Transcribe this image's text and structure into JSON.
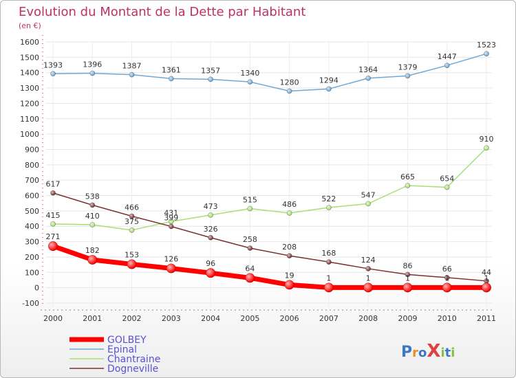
{
  "chart_data": {
    "type": "line",
    "title": "Evolution du Montant de la Dette par Habitant",
    "subtitle": "(en €)",
    "xlabel": "",
    "ylabel": "",
    "categories": [
      "2000",
      "2001",
      "2002",
      "2003",
      "2004",
      "2005",
      "2006",
      "2007",
      "2008",
      "2009",
      "2010",
      "2011"
    ],
    "ylim": [
      -100,
      1600
    ],
    "yticks": [
      -100,
      0,
      100,
      200,
      300,
      400,
      500,
      600,
      700,
      800,
      900,
      1000,
      1100,
      1200,
      1300,
      1400,
      1500,
      1600
    ],
    "grid": true,
    "legend_position": "bottom-left",
    "series": [
      {
        "name": "GOLBEY",
        "color": "#ff0000",
        "values": [
          271,
          182,
          153,
          126,
          96,
          64,
          19,
          1,
          1,
          1,
          1,
          1
        ]
      },
      {
        "name": "Epinal",
        "color": "#6fa8d6",
        "values": [
          1393,
          1396,
          1387,
          1361,
          1357,
          1340,
          1280,
          1294,
          1364,
          1379,
          1447,
          1523
        ]
      },
      {
        "name": "Chantraine",
        "color": "#a8e070",
        "values": [
          415,
          410,
          375,
          431,
          473,
          515,
          486,
          522,
          547,
          665,
          654,
          910
        ]
      },
      {
        "name": "Dogneville",
        "color": "#7a3030",
        "values": [
          617,
          538,
          466,
          399,
          326,
          258,
          208,
          168,
          124,
          86,
          66,
          44
        ]
      }
    ]
  },
  "logo": {
    "text": "ProXiti"
  }
}
